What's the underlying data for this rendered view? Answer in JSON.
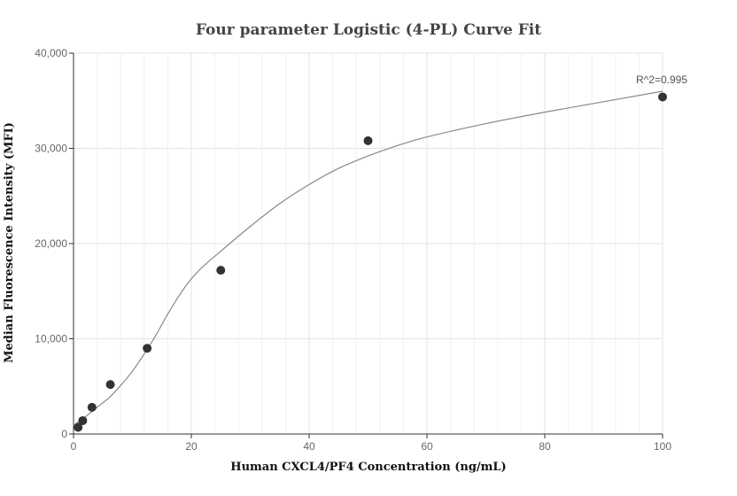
{
  "chart_data": {
    "type": "scatter",
    "title": "Four parameter Logistic (4-PL) Curve Fit",
    "xlabel": "Human CXCL4/PF4 Concentration (ng/mL)",
    "ylabel": "Median Fluorescence Intensity (MFI)",
    "xlim": [
      0,
      100
    ],
    "ylim": [
      0,
      40000
    ],
    "x_ticks": [
      0,
      20,
      40,
      60,
      80,
      100
    ],
    "y_ticks": [
      0,
      10000,
      20000,
      30000,
      40000
    ],
    "x_tick_labels": [
      "0",
      "20",
      "40",
      "60",
      "80",
      "100"
    ],
    "y_tick_labels": [
      "0",
      "10,000",
      "20,000",
      "30,000",
      "40,000"
    ],
    "grid": true,
    "colors": {
      "points": "#333333",
      "curve": "#888888",
      "grid_major": "#e3e3e3",
      "grid_minor": "#f1f1f1",
      "axis": "#333333"
    },
    "series": [
      {
        "type": "scatter",
        "x": [
          0.78,
          1.56,
          3.13,
          6.25,
          12.5,
          25,
          50,
          100
        ],
        "y": [
          700,
          1400,
          2800,
          5200,
          9000,
          17200,
          30800,
          35400
        ]
      }
    ],
    "fit_curve": {
      "type": "line",
      "x": [
        0,
        2,
        4,
        6,
        8,
        10,
        12,
        14,
        16,
        18,
        20,
        22,
        25,
        30,
        35,
        40,
        45,
        50,
        55,
        60,
        70,
        80,
        90,
        100
      ],
      "y": [
        900,
        1800,
        2800,
        3800,
        5100,
        6600,
        8400,
        10400,
        12600,
        14600,
        16300,
        17600,
        19200,
        21800,
        24200,
        26200,
        27900,
        29200,
        30300,
        31200,
        32600,
        33800,
        34900,
        36000
      ]
    },
    "annotation": {
      "text": "R^2=0.995",
      "x": 100,
      "y": 36000
    }
  }
}
